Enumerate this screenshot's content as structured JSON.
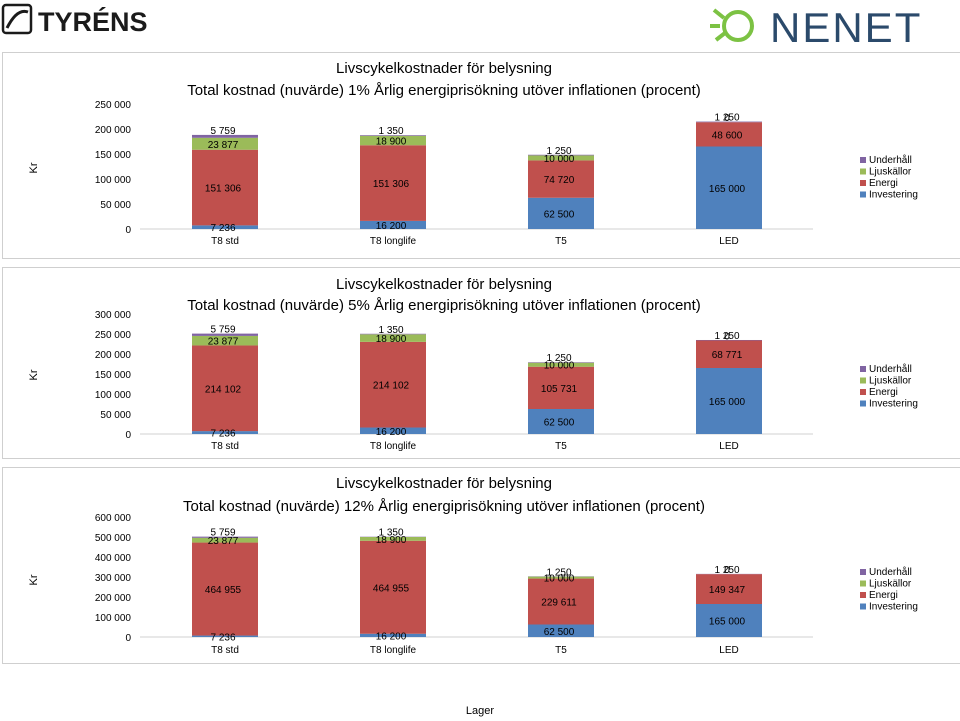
{
  "header": {
    "logo_left_text": "TYRÉNS",
    "logo_right_text": "NENET",
    "colors": {
      "tyrens": "#1b1b1b",
      "nenet_text": "#2b4a6b",
      "nenet_sun": "#7cc243"
    }
  },
  "footer": {
    "label": "Lager"
  },
  "colors": {
    "Investering": "#4f81bd",
    "Energi": "#c0504d",
    "Ljuskällor": "#9bbb59",
    "Underhåll": "#8064a2"
  },
  "chart_data": [
    {
      "type": "bar",
      "stacked": true,
      "title": "Livscykelkostnader för belysning",
      "subtitle": "Total kostnad (nuvärde) 1% Årlig energiprisökning utöver inflationen (procent)",
      "ylabel": "Kr",
      "xlabel": "",
      "ylim": [
        0,
        250000
      ],
      "yticks": [
        0,
        50000,
        100000,
        150000,
        200000,
        250000
      ],
      "ytick_labels": [
        "0",
        "50 000",
        "100 000",
        "150 000",
        "200 000",
        "250 000"
      ],
      "categories": [
        "T8 std",
        "T8 longlife",
        "T5",
        "LED"
      ],
      "legend": [
        "Underhåll",
        "Ljuskällor",
        "Energi",
        "Investering"
      ],
      "series": [
        {
          "name": "Investering",
          "values": [
            7236,
            16200,
            62500,
            165000
          ],
          "labels": [
            "7 236",
            "16 200",
            "62 500",
            "165 000"
          ]
        },
        {
          "name": "Energi",
          "values": [
            151306,
            151306,
            74720,
            48600
          ],
          "labels": [
            "151 306",
            "151 306",
            "74 720",
            "48 600"
          ]
        },
        {
          "name": "Ljuskällor",
          "values": [
            23877,
            18900,
            10000,
            0
          ],
          "labels": [
            "23 877",
            "18 900",
            "10 000",
            "0"
          ]
        },
        {
          "name": "Underhåll",
          "values": [
            5759,
            1350,
            1250,
            1250
          ],
          "labels": [
            "5 759",
            "1 350",
            "1 250",
            "1 250"
          ]
        }
      ]
    },
    {
      "type": "bar",
      "stacked": true,
      "title": "Livscykelkostnader för belysning",
      "subtitle": "Total kostnad (nuvärde) 5% Årlig energiprisökning utöver inflationen (procent)",
      "ylabel": "Kr",
      "xlabel": "",
      "ylim": [
        0,
        300000
      ],
      "yticks": [
        0,
        50000,
        100000,
        150000,
        200000,
        250000,
        300000
      ],
      "ytick_labels": [
        "0",
        "50 000",
        "100 000",
        "150 000",
        "200 000",
        "250 000",
        "300 000"
      ],
      "categories": [
        "T8 std",
        "T8 longlife",
        "T5",
        "LED"
      ],
      "legend": [
        "Underhåll",
        "Ljuskällor",
        "Energi",
        "Investering"
      ],
      "series": [
        {
          "name": "Investering",
          "values": [
            7236,
            16200,
            62500,
            165000
          ],
          "labels": [
            "7 236",
            "16 200",
            "62 500",
            "165 000"
          ]
        },
        {
          "name": "Energi",
          "values": [
            214102,
            214102,
            105731,
            68771
          ],
          "labels": [
            "214 102",
            "214 102",
            "105 731",
            "68 771"
          ]
        },
        {
          "name": "Ljuskällor",
          "values": [
            23877,
            18900,
            10000,
            0
          ],
          "labels": [
            "23 877",
            "18 900",
            "10 000",
            "0"
          ]
        },
        {
          "name": "Underhåll",
          "values": [
            5759,
            1350,
            1250,
            1250
          ],
          "labels": [
            "5 759",
            "1 350",
            "1 250",
            "1 250"
          ]
        }
      ]
    },
    {
      "type": "bar",
      "stacked": true,
      "title": "Livscykelkostnader för belysning",
      "subtitle": "Total kostnad (nuvärde) 12% Årlig energiprisökning utöver inflationen (procent)",
      "ylabel": "Kr",
      "xlabel": "",
      "ylim": [
        0,
        600000
      ],
      "yticks": [
        0,
        100000,
        200000,
        300000,
        400000,
        500000,
        600000
      ],
      "ytick_labels": [
        "0",
        "100 000",
        "200 000",
        "300 000",
        "400 000",
        "500 000",
        "600 000"
      ],
      "categories": [
        "T8 std",
        "T8 longlife",
        "T5",
        "LED"
      ],
      "legend": [
        "Underhåll",
        "Ljuskällor",
        "Energi",
        "Investering"
      ],
      "series": [
        {
          "name": "Investering",
          "values": [
            7236,
            16200,
            62500,
            165000
          ],
          "labels": [
            "7 236",
            "16 200",
            "62 500",
            "165 000"
          ]
        },
        {
          "name": "Energi",
          "values": [
            464955,
            464955,
            229611,
            149347
          ],
          "labels": [
            "464 955",
            "464 955",
            "229 611",
            "149 347"
          ]
        },
        {
          "name": "Ljuskällor",
          "values": [
            23877,
            18900,
            10000,
            0
          ],
          "labels": [
            "23 877",
            "18 900",
            "10 000",
            "0"
          ]
        },
        {
          "name": "Underhåll",
          "values": [
            5759,
            1350,
            1250,
            1250
          ],
          "labels": [
            "5 759",
            "1 350",
            "1 250",
            "1 250"
          ]
        }
      ]
    }
  ]
}
